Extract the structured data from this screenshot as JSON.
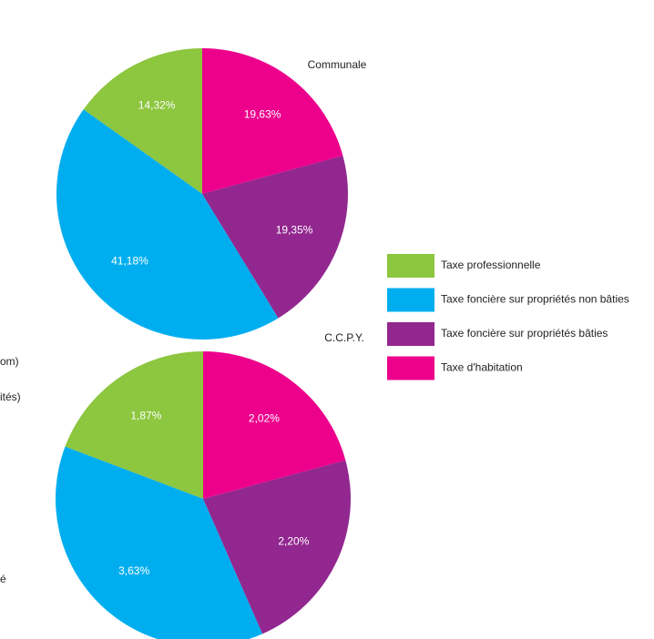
{
  "chart_data": {
    "type": "pie",
    "categories": [
      "Taxe professionnelle",
      "Taxe foncière sur propriétés non bâties",
      "Taxe foncière sur propriétés bâties",
      "Taxe d'habitation"
    ],
    "colors": [
      "#8dc63f",
      "#00aeef",
      "#92278f",
      "#ec008c"
    ],
    "series": [
      {
        "name": "Communale",
        "values": [
          14.32,
          41.18,
          19.35,
          19.63
        ],
        "value_labels": [
          "14,32%",
          "41,18%",
          "19,35%",
          "19,63%"
        ]
      },
      {
        "name": "C.C.P.Y.",
        "values": [
          1.87,
          3.63,
          2.2,
          2.02
        ],
        "value_labels": [
          "1,87%",
          "3,63%",
          "2,20%",
          "2,02%"
        ]
      }
    ]
  },
  "fragments": [
    "om)",
    "ités)",
    "é"
  ]
}
